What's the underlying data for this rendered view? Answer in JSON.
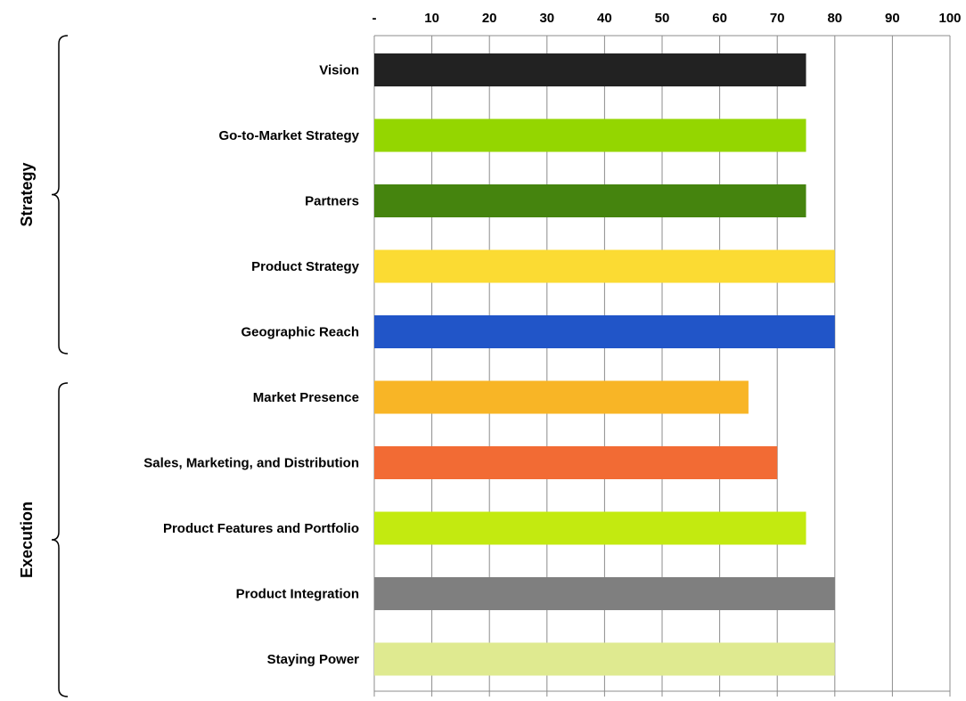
{
  "chart_data": {
    "type": "bar",
    "orientation": "horizontal",
    "x_ticks": [
      "-",
      "10",
      "20",
      "30",
      "40",
      "50",
      "60",
      "70",
      "80",
      "90",
      "100"
    ],
    "xlim": [
      0,
      100
    ],
    "grid": true,
    "legend": "none",
    "categories": [
      "Vision",
      "Go-to-Market Strategy",
      "Partners",
      "Product Strategy",
      "Geographic Reach",
      "Market Presence",
      "Sales, Marketing, and Distribution",
      "Product Features and Portfolio",
      "Product Integration",
      "Staying Power"
    ],
    "values": [
      75,
      75,
      75,
      80,
      80,
      65,
      70,
      75,
      80,
      80
    ],
    "colors": [
      "#222222",
      "#94d600",
      "#45840e",
      "#fbdb33",
      "#2155c8",
      "#f8b526",
      "#f26b34",
      "#c3ea10",
      "#7f7f7f",
      "#dfea90"
    ],
    "groups": [
      {
        "label": "Strategy",
        "categories": [
          "Vision",
          "Go-to-Market Strategy",
          "Partners",
          "Product Strategy",
          "Geographic Reach"
        ]
      },
      {
        "label": "Execution",
        "categories": [
          "Market Presence",
          "Sales, Marketing, and Distribution",
          "Product Features and Portfolio",
          "Product Integration",
          "Staying Power"
        ]
      }
    ]
  }
}
